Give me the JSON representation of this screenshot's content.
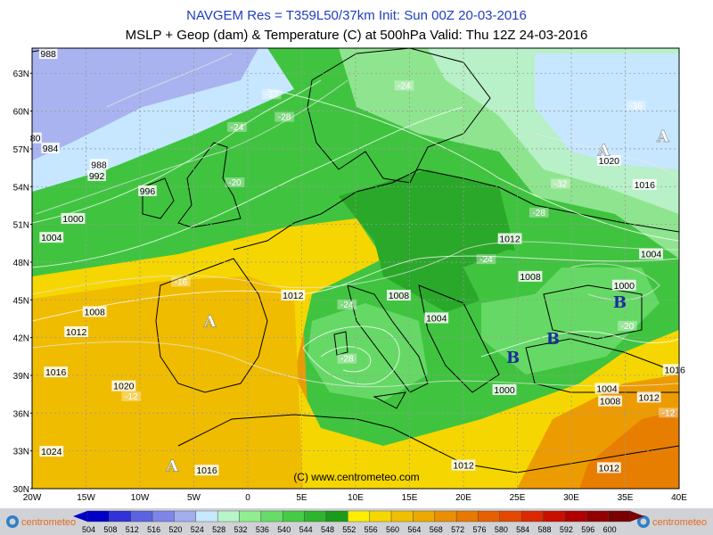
{
  "title_line1": "NAVGEM Res = T359L50/37km    Init: Sun 00Z 20-03-2016",
  "title_line2": "MSLP + Geop (dam) & Temperature (C) at 500hPa   Valid: Thu 12Z 24-03-2016",
  "credit": "(C) www.centrometeo.com",
  "logo_text": "centrometeo",
  "lat_labels": [
    "63N",
    "60N",
    "57N",
    "54N",
    "51N",
    "48N",
    "45N",
    "42N",
    "39N",
    "36N",
    "33N",
    "30N"
  ],
  "lon_labels": [
    "20W",
    "15W",
    "10W",
    "5W",
    "0",
    "5E",
    "10E",
    "15E",
    "20E",
    "25E",
    "30E",
    "35E",
    "40E"
  ],
  "isobars": [
    {
      "text": "988",
      "lon": -18.5,
      "lat": 64.5
    },
    {
      "text": "80",
      "lon": -19.7,
      "lat": 57.8
    },
    {
      "text": "984",
      "lon": -18.3,
      "lat": 57.0
    },
    {
      "text": "988",
      "lon": -13.8,
      "lat": 55.7
    },
    {
      "text": "992",
      "lon": -14.0,
      "lat": 54.8
    },
    {
      "text": "996",
      "lon": -9.3,
      "lat": 53.6
    },
    {
      "text": "1000",
      "lon": -16.2,
      "lat": 51.4
    },
    {
      "text": "1004",
      "lon": -18.2,
      "lat": 49.9
    },
    {
      "text": "1008",
      "lon": -14.2,
      "lat": 44.0
    },
    {
      "text": "1012",
      "lon": -15.9,
      "lat": 42.4
    },
    {
      "text": "1016",
      "lon": -17.8,
      "lat": 39.2
    },
    {
      "text": "1020",
      "lon": -11.5,
      "lat": 38.1
    },
    {
      "text": "1024",
      "lon": -18.2,
      "lat": 32.9
    },
    {
      "text": "1016",
      "lon": -3.8,
      "lat": 31.4
    },
    {
      "text": "1012",
      "lon": 4.2,
      "lat": 45.3
    },
    {
      "text": "1008",
      "lon": 14.0,
      "lat": 45.3
    },
    {
      "text": "1004",
      "lon": 17.5,
      "lat": 43.5
    },
    {
      "text": "1012",
      "lon": 24.3,
      "lat": 49.8
    },
    {
      "text": "1008",
      "lon": 26.2,
      "lat": 46.8
    },
    {
      "text": "1000",
      "lon": 23.8,
      "lat": 37.8
    },
    {
      "text": "1004",
      "lon": 33.3,
      "lat": 37.9
    },
    {
      "text": "1008",
      "lon": 33.6,
      "lat": 36.9
    },
    {
      "text": "1012",
      "lon": 37.2,
      "lat": 37.2
    },
    {
      "text": "1012",
      "lon": 20.0,
      "lat": 31.8
    },
    {
      "text": "1012",
      "lon": 33.5,
      "lat": 31.6
    },
    {
      "text": "1020",
      "lon": 33.5,
      "lat": 56.0
    },
    {
      "text": "1016",
      "lon": 36.8,
      "lat": 54.1
    },
    {
      "text": "1004",
      "lon": 37.4,
      "lat": 48.6
    },
    {
      "text": "1000",
      "lon": 34.9,
      "lat": 46.1
    },
    {
      "text": "1016",
      "lon": 39.6,
      "lat": 39.4
    }
  ],
  "temps": [
    {
      "text": "-32",
      "lon": 2.2,
      "lat": 61.3
    },
    {
      "text": "-24",
      "lon": 14.5,
      "lat": 62.0
    },
    {
      "text": "-28",
      "lon": 3.4,
      "lat": 59.5
    },
    {
      "text": "-24",
      "lon": -1.0,
      "lat": 58.7
    },
    {
      "text": "-36",
      "lon": 36.0,
      "lat": 60.4
    },
    {
      "text": "-20",
      "lon": -1.2,
      "lat": 54.3
    },
    {
      "text": "-32",
      "lon": 29.0,
      "lat": 54.2
    },
    {
      "text": "-28",
      "lon": 27.0,
      "lat": 51.9
    },
    {
      "text": "-24",
      "lon": 22.1,
      "lat": 48.2
    },
    {
      "text": "-16",
      "lon": -6.2,
      "lat": 46.4
    },
    {
      "text": "-24",
      "lon": 9.2,
      "lat": 44.6
    },
    {
      "text": "-28",
      "lon": 9.2,
      "lat": 40.3
    },
    {
      "text": "-20",
      "lon": 35.2,
      "lat": 42.9
    },
    {
      "text": "-12",
      "lon": -10.8,
      "lat": 37.3
    },
    {
      "text": "-12",
      "lon": 39.0,
      "lat": 36.0
    }
  ],
  "pressure_centers": [
    {
      "text": "A",
      "type": "high",
      "lon": -3.5,
      "lat": 43.3
    },
    {
      "text": "A",
      "type": "high",
      "lon": -7.0,
      "lat": 31.8
    },
    {
      "text": "A",
      "type": "high",
      "lon": 33.0,
      "lat": 56.9
    },
    {
      "text": "A",
      "type": "high",
      "lon": 38.5,
      "lat": 58.0
    },
    {
      "text": "B",
      "type": "low",
      "lon": 24.6,
      "lat": 40.4
    },
    {
      "text": "B",
      "type": "low",
      "lon": 28.3,
      "lat": 41.9
    },
    {
      "text": "B",
      "type": "low",
      "lon": 34.5,
      "lat": 44.8
    }
  ],
  "colorbar": {
    "labels": [
      "504",
      "508",
      "512",
      "516",
      "520",
      "524",
      "528",
      "532",
      "536",
      "540",
      "544",
      "548",
      "552",
      "556",
      "560",
      "564",
      "568",
      "572",
      "576",
      "580",
      "584",
      "588",
      "592",
      "596",
      "600"
    ],
    "colors": [
      "#0000c8",
      "#2f33d8",
      "#5a63e0",
      "#7d86e8",
      "#a3aeef",
      "#c8e8ff",
      "#b8f5c8",
      "#90ee90",
      "#66dd66",
      "#45cc45",
      "#2db52d",
      "#1a9c1a",
      "#ffee00",
      "#f6d800",
      "#f0c000",
      "#eea800",
      "#ea9000",
      "#e87800",
      "#e66000",
      "#e24800",
      "#dc2800",
      "#c81000",
      "#b00000",
      "#920000",
      "#780000"
    ]
  },
  "field_colors": {
    "z524": "#a9b3f0",
    "z528": "#c6e7ff",
    "z532": "#b8f0c8",
    "z536": "#8fe58f",
    "z540": "#66d866",
    "z544": "#40c440",
    "z548": "#2aa82a",
    "z552": "#ffee00",
    "z556": "#f6d600",
    "z560": "#f0bc00",
    "z564": "#ec9c00",
    "z568": "#e87e00",
    "z572": "#e25a10"
  }
}
